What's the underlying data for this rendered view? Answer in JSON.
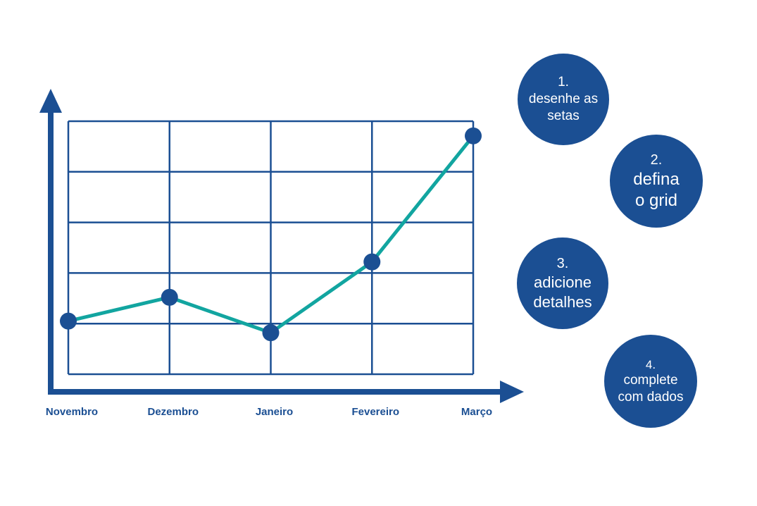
{
  "colors": {
    "axis": "#1b4f93",
    "grid": "#1b4f93",
    "line": "#12a5a0",
    "point": "#1b4f93",
    "step_bg": "#1b4f93",
    "step_text": "#ffffff"
  },
  "chart_data": {
    "type": "line",
    "categories": [
      "Novembro",
      "Dezembro",
      "Janeiro",
      "Fevereiro",
      "Março"
    ],
    "values": [
      1.05,
      1.52,
      0.82,
      2.22,
      4.71
    ],
    "ylim": [
      0,
      5
    ],
    "grid": true,
    "title": "",
    "xlabel": "",
    "ylabel": ""
  },
  "steps": [
    {
      "number": "1.",
      "lines": [
        "desenhe as",
        "setas"
      ]
    },
    {
      "number": "2.",
      "lines": [
        "defina",
        "o grid"
      ]
    },
    {
      "number": "3.",
      "lines": [
        "adicione",
        "detalhes"
      ]
    },
    {
      "number": "4.",
      "lines": [
        "complete",
        "com dados"
      ]
    }
  ]
}
